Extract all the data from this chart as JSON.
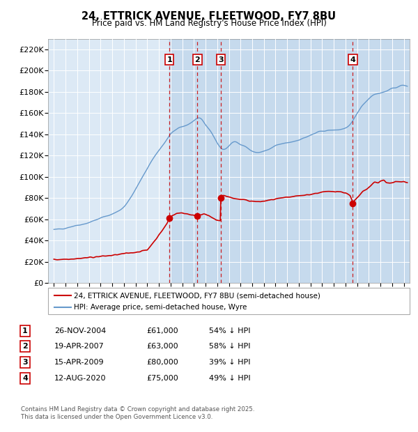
{
  "title": "24, ETTRICK AVENUE, FLEETWOOD, FY7 8BU",
  "subtitle": "Price paid vs. HM Land Registry's House Price Index (HPI)",
  "legend_line1": "24, ETTRICK AVENUE, FLEETWOOD, FY7 8BU (semi-detached house)",
  "legend_line2": "HPI: Average price, semi-detached house, Wyre",
  "footer1": "Contains HM Land Registry data © Crown copyright and database right 2025.",
  "footer2": "This data is licensed under the Open Government Licence v3.0.",
  "red_color": "#cc0000",
  "blue_color": "#6699cc",
  "bg_color": "#dce9f5",
  "purchases": [
    {
      "num": 1,
      "date": "26-NOV-2004",
      "price": 61000,
      "pct": "54%",
      "dir": "↓",
      "x": 2004.9
    },
    {
      "num": 2,
      "date": "19-APR-2007",
      "price": 63000,
      "pct": "58%",
      "dir": "↓",
      "x": 2007.3
    },
    {
      "num": 3,
      "date": "15-APR-2009",
      "price": 80000,
      "pct": "39%",
      "dir": "↓",
      "x": 2009.3
    },
    {
      "num": 4,
      "date": "12-AUG-2020",
      "price": 75000,
      "pct": "49%",
      "dir": "↓",
      "x": 2020.62
    }
  ],
  "ylim": [
    0,
    230000
  ],
  "xlim": [
    1994.5,
    2025.5
  ],
  "yticks": [
    0,
    20000,
    40000,
    60000,
    80000,
    100000,
    120000,
    140000,
    160000,
    180000,
    200000,
    220000
  ],
  "ytick_labels": [
    "£0",
    "£20K",
    "£40K",
    "£60K",
    "£80K",
    "£100K",
    "£120K",
    "£140K",
    "£160K",
    "£180K",
    "£200K",
    "£220K"
  ],
  "xticks": [
    1995,
    1996,
    1997,
    1998,
    1999,
    2000,
    2001,
    2002,
    2003,
    2004,
    2005,
    2006,
    2007,
    2008,
    2009,
    2010,
    2011,
    2012,
    2013,
    2014,
    2015,
    2016,
    2017,
    2018,
    2019,
    2020,
    2021,
    2022,
    2023,
    2024,
    2025
  ]
}
